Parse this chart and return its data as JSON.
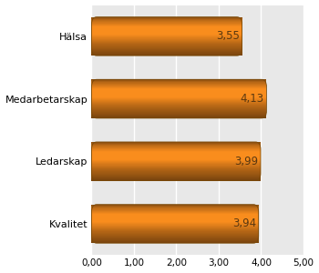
{
  "categories": [
    "Hälsa",
    "Medarbetarskap",
    "Ledarskap",
    "Kvalitet"
  ],
  "values": [
    3.55,
    4.13,
    3.99,
    3.94
  ],
  "value_labels": [
    "3,55",
    "4,13",
    "3,99",
    "3,94"
  ],
  "xlim": [
    0,
    5.0
  ],
  "xticks": [
    0.0,
    1.0,
    2.0,
    3.0,
    4.0,
    5.0
  ],
  "xtick_labels": [
    "0,00",
    "1,00",
    "2,00",
    "3,00",
    "4,00",
    "5,00"
  ],
  "figure_bg": "#FFFFFF",
  "plot_bg": "#E8E8E8",
  "grid_color": "#FFFFFF",
  "label_color": "#5A3810",
  "bar_dark_edge": "#8B5A0A",
  "bar_mid_top": "#C8640E",
  "bar_bright": "#F0A050",
  "bar_mid_bottom": "#C8640E",
  "figsize": [
    3.5,
    3.0
  ],
  "dpi": 100
}
